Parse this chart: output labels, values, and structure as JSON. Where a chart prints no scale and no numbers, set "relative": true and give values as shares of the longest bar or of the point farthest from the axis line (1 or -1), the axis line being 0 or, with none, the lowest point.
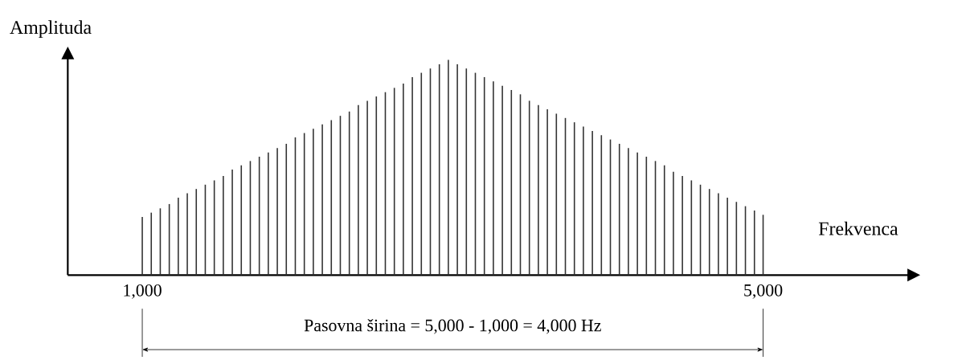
{
  "chart_data": {
    "type": "bar",
    "relative": true,
    "xlabel": "Frekvenca",
    "ylabel": "Amplituda",
    "annotations": [
      "Pasovna širina = 5,000 - 1,000 = 4,000 Hz"
    ],
    "xlim": [
      520,
      5940
    ],
    "xticks": [
      {
        "value": 1000,
        "label": "1,000"
      },
      {
        "value": 5000,
        "label": "5,000"
      }
    ],
    "color": "#333333",
    "x": [
      1000,
      1058,
      1116,
      1174,
      1232,
      1290,
      1348,
      1406,
      1464,
      1522,
      1580,
      1638,
      1696,
      1754,
      1812,
      1870,
      1928,
      1986,
      2044,
      2102,
      2160,
      2218,
      2276,
      2334,
      2392,
      2450,
      2508,
      2566,
      2624,
      2682,
      2740,
      2798,
      2856,
      2914,
      2972,
      3030,
      3088,
      3146,
      3204,
      3262,
      3320,
      3378,
      3436,
      3494,
      3552,
      3610,
      3668,
      3726,
      3784,
      3842,
      3900,
      3958,
      4016,
      4074,
      4132,
      4190,
      4248,
      4306,
      4364,
      4422,
      4480,
      4538,
      4596,
      4654,
      4712,
      4770,
      4828,
      4886,
      4944,
      5000
    ],
    "values": [
      0.27,
      0.29,
      0.31,
      0.33,
      0.36,
      0.38,
      0.4,
      0.42,
      0.44,
      0.46,
      0.49,
      0.51,
      0.53,
      0.55,
      0.57,
      0.59,
      0.61,
      0.64,
      0.66,
      0.68,
      0.7,
      0.72,
      0.74,
      0.76,
      0.79,
      0.81,
      0.83,
      0.85,
      0.87,
      0.89,
      0.92,
      0.94,
      0.96,
      0.98,
      1,
      0.98,
      0.96,
      0.94,
      0.92,
      0.9,
      0.88,
      0.86,
      0.84,
      0.81,
      0.79,
      0.77,
      0.75,
      0.73,
      0.71,
      0.69,
      0.67,
      0.65,
      0.63,
      0.61,
      0.59,
      0.57,
      0.55,
      0.53,
      0.51,
      0.48,
      0.46,
      0.44,
      0.42,
      0.4,
      0.38,
      0.36,
      0.34,
      0.32,
      0.3,
      0.28
    ]
  }
}
